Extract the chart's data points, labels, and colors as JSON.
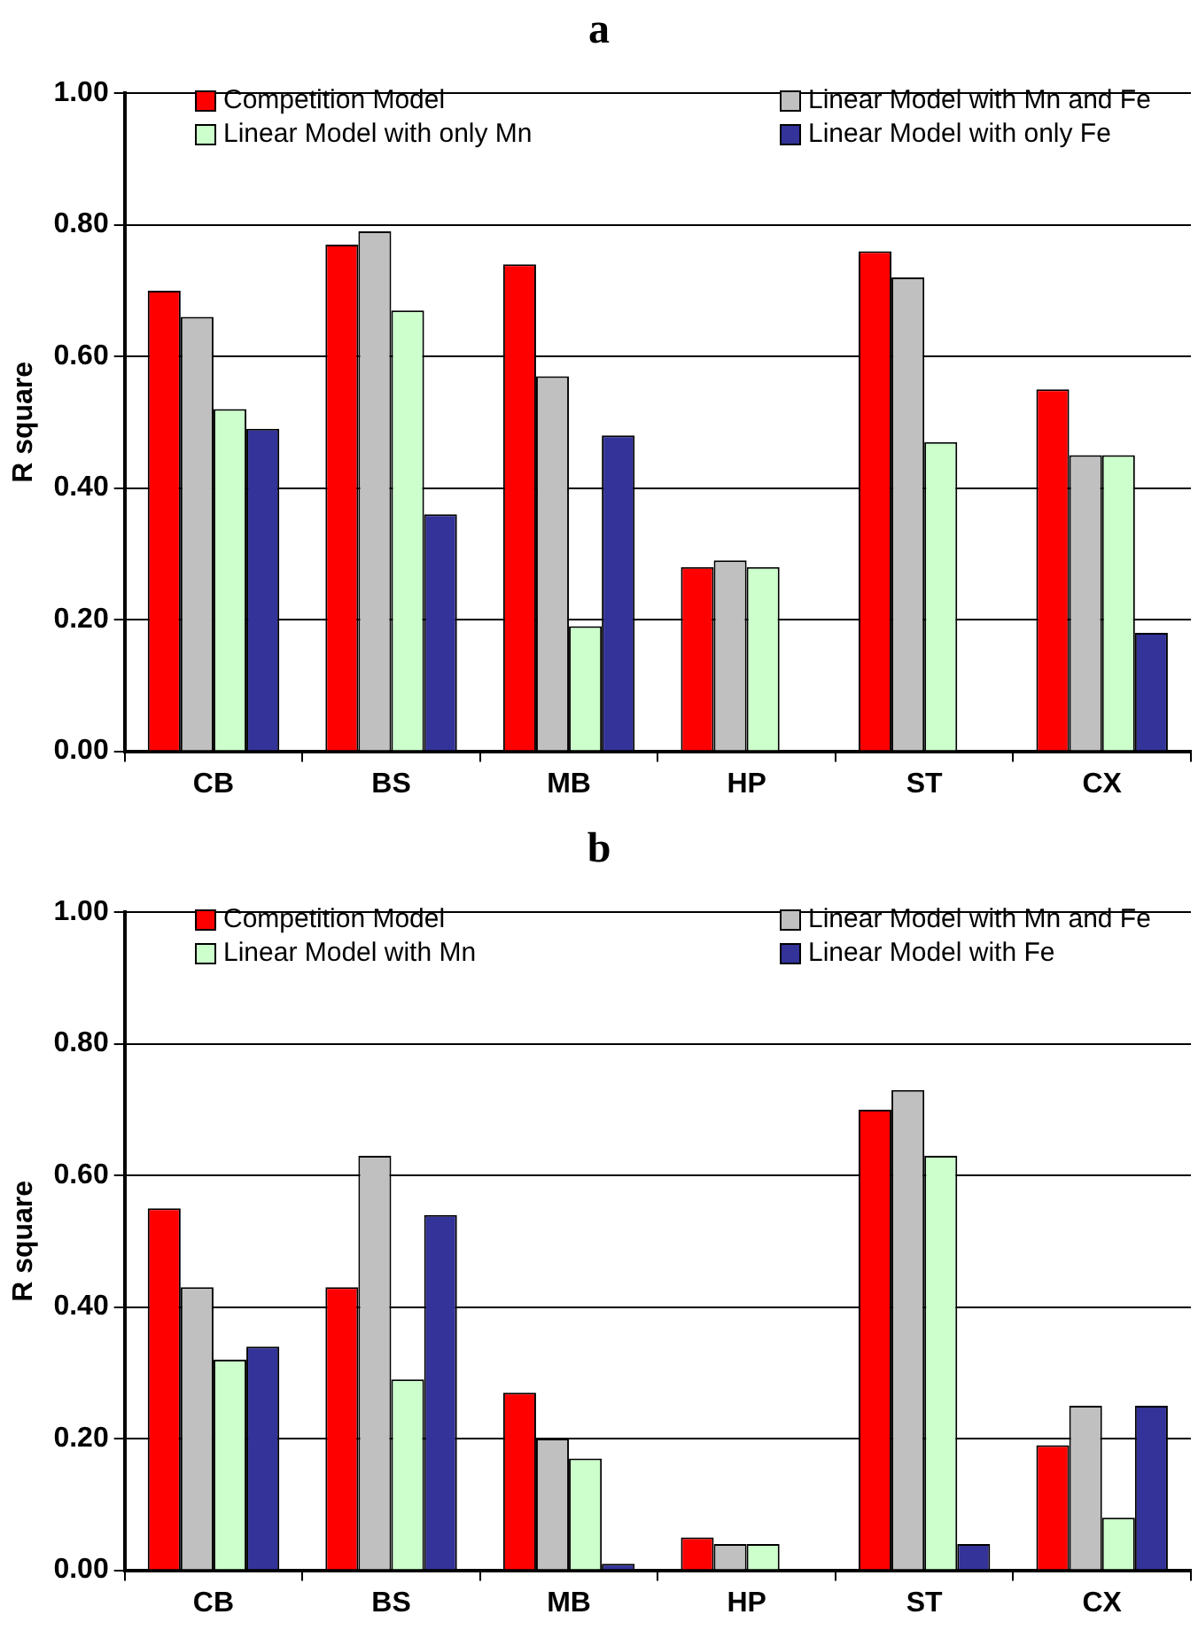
{
  "chart_data": [
    {
      "type": "bar",
      "title": "a",
      "ylabel": "R square",
      "categories": [
        "CB",
        "BS",
        "MB",
        "HP",
        "ST",
        "CX"
      ],
      "ylim": [
        0,
        1
      ],
      "yticks": [
        {
          "value": 0,
          "label": "0.00"
        },
        {
          "value": 0.2,
          "label": "0.20"
        },
        {
          "value": 0.4,
          "label": "0.40"
        },
        {
          "value": 0.6,
          "label": "0.60"
        },
        {
          "value": 0.8,
          "label": "0.80"
        },
        {
          "value": 1,
          "label": "1.00"
        }
      ],
      "grid": "y",
      "legend": "top",
      "series": [
        {
          "name": "Competition Model",
          "color": "#ff0000",
          "values": [
            0.7,
            0.77,
            0.74,
            0.28,
            0.76,
            0.55
          ]
        },
        {
          "name": "Linear Model with Mn and Fe",
          "color": "#c0c0c0",
          "values": [
            0.66,
            0.79,
            0.57,
            0.29,
            0.72,
            0.45
          ]
        },
        {
          "name": "Linear Model with only Mn",
          "color": "#ccffcc",
          "values": [
            0.52,
            0.67,
            0.19,
            0.28,
            0.47,
            0.45
          ]
        },
        {
          "name": "Linear Model with only Fe",
          "color": "#333399",
          "values": [
            0.49,
            0.36,
            0.48,
            0,
            0,
            0.18
          ]
        }
      ]
    },
    {
      "type": "bar",
      "title": "b",
      "ylabel": "R square",
      "categories": [
        "CB",
        "BS",
        "MB",
        "HP",
        "ST",
        "CX"
      ],
      "ylim": [
        0,
        1
      ],
      "yticks": [
        {
          "value": 0,
          "label": "0.00"
        },
        {
          "value": 0.2,
          "label": "0.20"
        },
        {
          "value": 0.4,
          "label": "0.40"
        },
        {
          "value": 0.6,
          "label": "0.60"
        },
        {
          "value": 0.8,
          "label": "0.80"
        },
        {
          "value": 1,
          "label": "1.00"
        }
      ],
      "grid": "y",
      "legend": "top",
      "series": [
        {
          "name": "Competition Model",
          "color": "#ff0000",
          "values": [
            0.55,
            0.43,
            0.27,
            0.05,
            0.7,
            0.19
          ]
        },
        {
          "name": "Linear Model with Mn and Fe",
          "color": "#c0c0c0",
          "values": [
            0.43,
            0.63,
            0.2,
            0.04,
            0.73,
            0.25
          ]
        },
        {
          "name": "Linear Model with Mn",
          "color": "#ccffcc",
          "values": [
            0.32,
            0.29,
            0.17,
            0.04,
            0.63,
            0.08
          ]
        },
        {
          "name": "Linear Model with Fe",
          "color": "#333399",
          "values": [
            0.34,
            0.54,
            0.01,
            0,
            0.04,
            0.25
          ]
        }
      ]
    }
  ]
}
